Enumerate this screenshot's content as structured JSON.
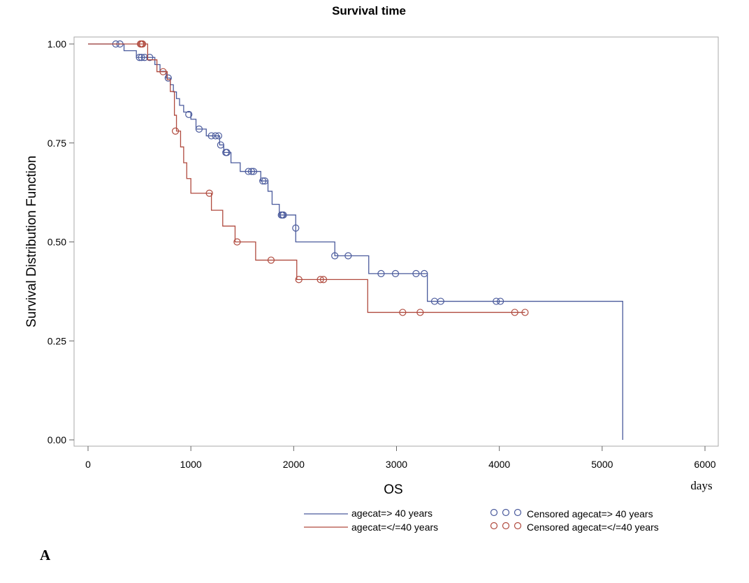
{
  "chart_data": {
    "type": "line",
    "subtype": "kaplan-meier-step",
    "title": "Survival time",
    "xlabel": "OS",
    "x_unit_label": "days",
    "ylabel": "Survival Distribution Function",
    "xlim": [
      0,
      6000
    ],
    "ylim": [
      0,
      1
    ],
    "x_ticks": [
      "0",
      "1000",
      "2000",
      "3000",
      "4000",
      "5000",
      "6000"
    ],
    "y_ticks": [
      "0.00",
      "0.25",
      "0.50",
      "0.75",
      "1.00"
    ],
    "x_tick_values": [
      0,
      1000,
      2000,
      3000,
      4000,
      5000,
      6000
    ],
    "y_tick_values": [
      0,
      0.25,
      0.5,
      0.75,
      1.0
    ],
    "grid": false,
    "legend_position": "bottom",
    "panel_label": "A",
    "series": [
      {
        "name": "agecat=> 40 years",
        "censored_name": "Censored agecat=> 40 years",
        "color": "#4a5a9c",
        "steps": [
          [
            0,
            1.0
          ],
          [
            350,
            0.983
          ],
          [
            470,
            0.966
          ],
          [
            650,
            0.948
          ],
          [
            700,
            0.931
          ],
          [
            760,
            0.914
          ],
          [
            800,
            0.897
          ],
          [
            830,
            0.879
          ],
          [
            860,
            0.862
          ],
          [
            890,
            0.845
          ],
          [
            930,
            0.828
          ],
          [
            1000,
            0.81
          ],
          [
            1050,
            0.785
          ],
          [
            1150,
            0.768
          ],
          [
            1280,
            0.745
          ],
          [
            1320,
            0.726
          ],
          [
            1390,
            0.7
          ],
          [
            1480,
            0.678
          ],
          [
            1680,
            0.654
          ],
          [
            1750,
            0.628
          ],
          [
            1790,
            0.595
          ],
          [
            1860,
            0.568
          ],
          [
            2020,
            0.5
          ],
          [
            2400,
            0.465
          ],
          [
            2730,
            0.42
          ],
          [
            3300,
            0.35
          ],
          [
            5200,
            0.0
          ]
        ],
        "end_x": 5200,
        "censored": [
          [
            270,
            1.0
          ],
          [
            310,
            1.0
          ],
          [
            500,
            0.966
          ],
          [
            520,
            0.966
          ],
          [
            550,
            0.966
          ],
          [
            600,
            0.966
          ],
          [
            780,
            0.914
          ],
          [
            980,
            0.822
          ],
          [
            1080,
            0.785
          ],
          [
            1200,
            0.768
          ],
          [
            1240,
            0.768
          ],
          [
            1270,
            0.768
          ],
          [
            1290,
            0.745
          ],
          [
            1340,
            0.726
          ],
          [
            1350,
            0.726
          ],
          [
            1560,
            0.678
          ],
          [
            1590,
            0.678
          ],
          [
            1610,
            0.678
          ],
          [
            1700,
            0.654
          ],
          [
            1720,
            0.654
          ],
          [
            1880,
            0.568
          ],
          [
            1890,
            0.568
          ],
          [
            1900,
            0.568
          ],
          [
            2020,
            0.535
          ],
          [
            2400,
            0.465
          ],
          [
            2530,
            0.465
          ],
          [
            2850,
            0.42
          ],
          [
            2990,
            0.42
          ],
          [
            3190,
            0.42
          ],
          [
            3270,
            0.42
          ],
          [
            3370,
            0.35
          ],
          [
            3430,
            0.35
          ],
          [
            3970,
            0.35
          ],
          [
            4010,
            0.35
          ]
        ]
      },
      {
        "name": "agecat=</=40 years",
        "censored_name": "Censored agecat=</=40 years",
        "color": "#b04a3e",
        "steps": [
          [
            0,
            1.0
          ],
          [
            580,
            0.96
          ],
          [
            670,
            0.93
          ],
          [
            770,
            0.91
          ],
          [
            800,
            0.88
          ],
          [
            840,
            0.82
          ],
          [
            860,
            0.78
          ],
          [
            900,
            0.74
          ],
          [
            930,
            0.7
          ],
          [
            960,
            0.66
          ],
          [
            1000,
            0.623
          ],
          [
            1200,
            0.58
          ],
          [
            1310,
            0.54
          ],
          [
            1430,
            0.5
          ],
          [
            1630,
            0.454
          ],
          [
            2030,
            0.405
          ],
          [
            2720,
            0.322
          ]
        ],
        "end_x": 4250,
        "censored": [
          [
            510,
            1.0
          ],
          [
            520,
            1.0
          ],
          [
            530,
            1.0
          ],
          [
            730,
            0.93
          ],
          [
            850,
            0.78
          ],
          [
            1180,
            0.623
          ],
          [
            1450,
            0.5
          ],
          [
            1780,
            0.454
          ],
          [
            2050,
            0.405
          ],
          [
            2260,
            0.405
          ],
          [
            2290,
            0.405
          ],
          [
            3060,
            0.322
          ],
          [
            3230,
            0.322
          ],
          [
            4150,
            0.322
          ],
          [
            4250,
            0.322
          ]
        ]
      }
    ]
  }
}
